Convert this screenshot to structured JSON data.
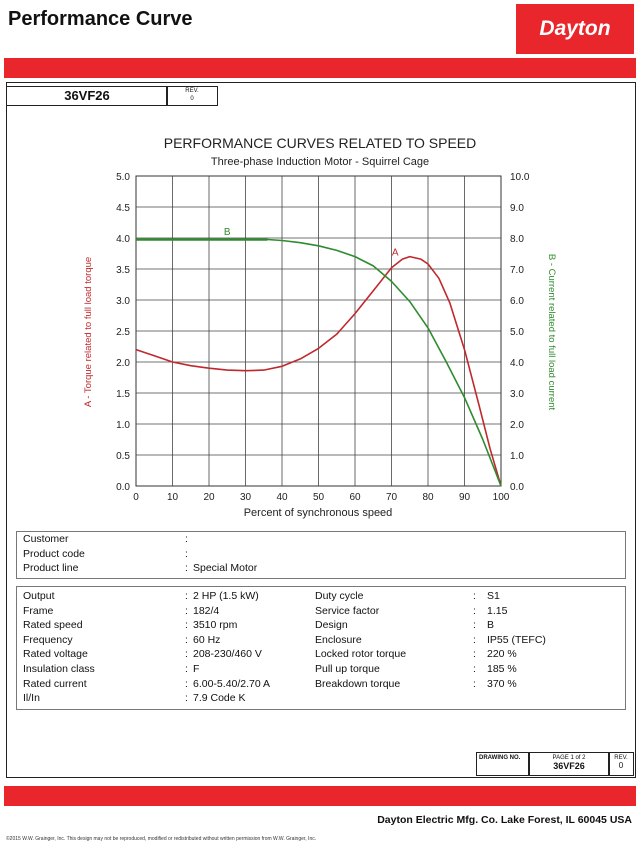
{
  "header": {
    "title": "Performance Curve",
    "logo_text": "Dayton"
  },
  "model_box": {
    "model": "36VF26",
    "rev_label": "REV.",
    "rev_value": "0"
  },
  "chart_data": {
    "type": "line",
    "title": "PERFORMANCE CURVES RELATED TO SPEED",
    "subtitle": "Three-phase Induction Motor - Squirrel Cage",
    "xlabel": "Percent of synchronous speed",
    "ylabel_left": "A - Torque related to full load torque",
    "ylabel_right": "B - Current related to full load current",
    "xlim": [
      0,
      100
    ],
    "ylim_left": [
      0,
      5
    ],
    "ylim_right": [
      0,
      10
    ],
    "x_ticks": [
      "0",
      "10",
      "20",
      "30",
      "40",
      "50",
      "60",
      "70",
      "80",
      "90",
      "100"
    ],
    "y_ticks_left": [
      "0.0",
      "0.5",
      "1.0",
      "1.5",
      "2.0",
      "2.5",
      "3.0",
      "3.5",
      "4.0",
      "4.5",
      "5.0"
    ],
    "y_ticks_right": [
      "0.0",
      "1.0",
      "2.0",
      "3.0",
      "4.0",
      "5.0",
      "6.0",
      "7.0",
      "8.0",
      "9.0",
      "10.0"
    ],
    "grid": true,
    "series": [
      {
        "name": "A",
        "axis": "left",
        "color": "#c0282d",
        "x": [
          0,
          5,
          10,
          15,
          20,
          25,
          30,
          35,
          40,
          45,
          50,
          55,
          60,
          65,
          70,
          73,
          75,
          78,
          80,
          83,
          86,
          90,
          94,
          97,
          100
        ],
        "y": [
          2.2,
          2.1,
          2.0,
          1.94,
          1.9,
          1.87,
          1.86,
          1.87,
          1.93,
          2.05,
          2.22,
          2.45,
          2.78,
          3.15,
          3.52,
          3.66,
          3.7,
          3.66,
          3.58,
          3.35,
          2.95,
          2.2,
          1.3,
          0.6,
          0.0
        ]
      },
      {
        "name": "B",
        "axis": "right",
        "color": "#2e8b2e",
        "x": [
          0,
          10,
          20,
          30,
          36,
          40,
          45,
          50,
          55,
          60,
          65,
          70,
          75,
          80,
          85,
          90,
          95,
          100
        ],
        "y": [
          7.95,
          7.95,
          7.95,
          7.95,
          7.95,
          7.92,
          7.85,
          7.75,
          7.6,
          7.4,
          7.1,
          6.6,
          5.95,
          5.1,
          4.0,
          2.85,
          1.5,
          0.0
        ]
      }
    ],
    "annotations": [
      {
        "text": "B",
        "x": 25,
        "y_right": 8.1,
        "color": "#2e8b2e"
      },
      {
        "text": "A",
        "x": 71,
        "y_left": 3.72,
        "color": "#c0282d"
      }
    ]
  },
  "customer_info": {
    "rows": [
      {
        "label": "Customer",
        "sep": ":",
        "value": ""
      },
      {
        "label": "Product code",
        "sep": ":",
        "value": ""
      },
      {
        "label": "Product line",
        "sep": ":",
        "value": "Special Motor"
      }
    ]
  },
  "specs": {
    "left": [
      {
        "label": "Output",
        "sep": ":",
        "value": "2 HP (1.5 kW)"
      },
      {
        "label": "Frame",
        "sep": ":",
        "value": "182/4"
      },
      {
        "label": "Rated speed",
        "sep": ":",
        "value": "3510 rpm"
      },
      {
        "label": "Frequency",
        "sep": ":",
        "value": "60 Hz"
      },
      {
        "label": "Rated voltage",
        "sep": ":",
        "value": "208-230/460 V"
      },
      {
        "label": "Insulation class",
        "sep": ":",
        "value": "F"
      },
      {
        "label": "Rated current",
        "sep": ":",
        "value": "6.00-5.40/2.70 A"
      },
      {
        "label": "Il/In",
        "sep": ":",
        "value": "7.9   Code K"
      }
    ],
    "right": [
      {
        "label": "Duty cycle",
        "sep": ":",
        "value": "S1"
      },
      {
        "label": "Service factor",
        "sep": ":",
        "value": "1.15"
      },
      {
        "label": "Design",
        "sep": ":",
        "value": "B"
      },
      {
        "label": "Enclosure",
        "sep": ":",
        "value": "IP55 (TEFC)"
      },
      {
        "label": "Locked rotor torque",
        "sep": ":",
        "value": "220 %"
      },
      {
        "label": "Pull up torque",
        "sep": ":",
        "value": "185 %"
      },
      {
        "label": "Breakdown torque",
        "sep": ":",
        "value": "370 %"
      }
    ]
  },
  "footer_box": {
    "drawing_no_label": "DRAWING NO.",
    "page_label": "PAGE 1 of 2",
    "drawing_no": "36VF26",
    "rev_label": "REV.",
    "rev_value": "0"
  },
  "company": "Dayton Electric Mfg. Co.  Lake Forest, IL  60045  USA",
  "copyright": "©2015 W.W. Grainger, Inc.  This design may not be reproduced, modified or redistributed without written permission from W.W. Grainger, Inc.",
  "colors": {
    "brand_red": "#e8262b",
    "torque_curve": "#c0282d",
    "current_curve": "#2e8b2e"
  }
}
